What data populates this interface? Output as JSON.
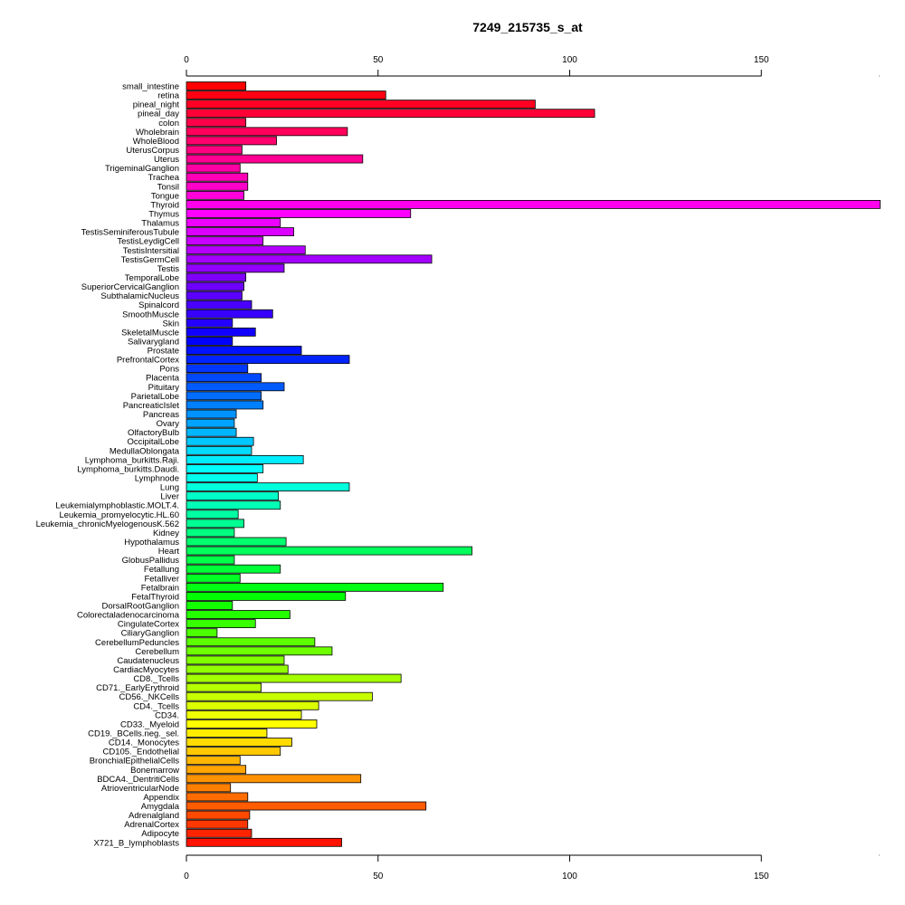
{
  "chart_data": {
    "type": "bar",
    "orientation": "horizontal",
    "title": "7249_215735_s_at",
    "xlabel": "",
    "ylabel": "",
    "xlim": [
      0,
      182
    ],
    "xticks": [
      0,
      50,
      100,
      150
    ],
    "axes": [
      "top",
      "bottom"
    ],
    "grid": false,
    "color_scheme": "rainbow",
    "categories": [
      "small_intestine",
      "retina",
      "pineal_night",
      "pineal_day",
      "colon",
      "Wholebrain",
      "WholeBlood",
      "UterusCorpus",
      "Uterus",
      "TrigeminalGanglion",
      "Trachea",
      "Tonsil",
      "Tongue",
      "Thyroid",
      "Thymus",
      "Thalamus",
      "TestisSeminiferousTubule",
      "TestisLeydigCell",
      "TestisIntersitial",
      "TestisGermCell",
      "Testis",
      "TemporalLobe",
      "SuperiorCervicalGanglion",
      "SubthalamicNucleus",
      "Spinalcord",
      "SmoothMuscle",
      "Skin",
      "SkeletalMuscle",
      "Salivarygland",
      "Prostate",
      "PrefrontalCortex",
      "Pons",
      "Placenta",
      "Pituitary",
      "ParietalLobe",
      "PancreaticIslet",
      "Pancreas",
      "Ovary",
      "OlfactoryBulb",
      "OccipitalLobe",
      "MedullaOblongata",
      "Lymphoma_burkitts.Raji.",
      "Lymphoma_burkitts.Daudi.",
      "Lymphnode",
      "Lung",
      "Liver",
      "Leukemialymphoblastic.MOLT.4.",
      "Leukemia_promyelocytic.HL.60",
      "Leukemia_chronicMyelogenousK.562",
      "Kidney",
      "Hypothalamus",
      "Heart",
      "GlobusPallidus",
      "Fetallung",
      "Fetalliver",
      "Fetalbrain",
      "FetalThyroid",
      "DorsalRootGanglion",
      "Colorectaladenocarcinoma",
      "CingulateCortex",
      "CiliaryGanglion",
      "CerebellumPeduncles",
      "Cerebellum",
      "Caudatenucleus",
      "CardiacMyocytes",
      "CD8._Tcells",
      "CD71._EarlyErythroid",
      "CD56._NKCells",
      "CD4._Tcells",
      "CD34.",
      "CD33._Myeloid",
      "CD19._BCells.neg._sel.",
      "CD14._Monocytes",
      "CD105._Endothelial",
      "BronchialEpithelialCells",
      "Bonemarrow",
      "BDCA4._DentritiCells",
      "AtrioventricularNode",
      "Appendix",
      "Amygdala",
      "Adrenalgland",
      "AdrenalCortex",
      "Adipocyte",
      "X721_B_lymphoblasts"
    ],
    "values": [
      15.5,
      52,
      91,
      106.5,
      15.5,
      42,
      23.5,
      14.5,
      46,
      14,
      16,
      16,
      15,
      181,
      58.5,
      24.5,
      28,
      20,
      31,
      64,
      25.5,
      15.5,
      15,
      14.5,
      17,
      22.5,
      12,
      18,
      12,
      30,
      42.5,
      16,
      19.5,
      25.5,
      19.5,
      20,
      13,
      12.5,
      13,
      17.5,
      17,
      30.5,
      20,
      18.5,
      42.5,
      24,
      24.5,
      13.5,
      15,
      12.5,
      26,
      74.5,
      12.5,
      24.5,
      14,
      67,
      41.5,
      12,
      27,
      18,
      8,
      33.5,
      38,
      25.5,
      26.5,
      56,
      19.5,
      48.5,
      34.5,
      30,
      34,
      21,
      27.5,
      24.5,
      14,
      15.5,
      45.5,
      11.5,
      16,
      62.5,
      16.5,
      16,
      17,
      40.5
    ]
  }
}
